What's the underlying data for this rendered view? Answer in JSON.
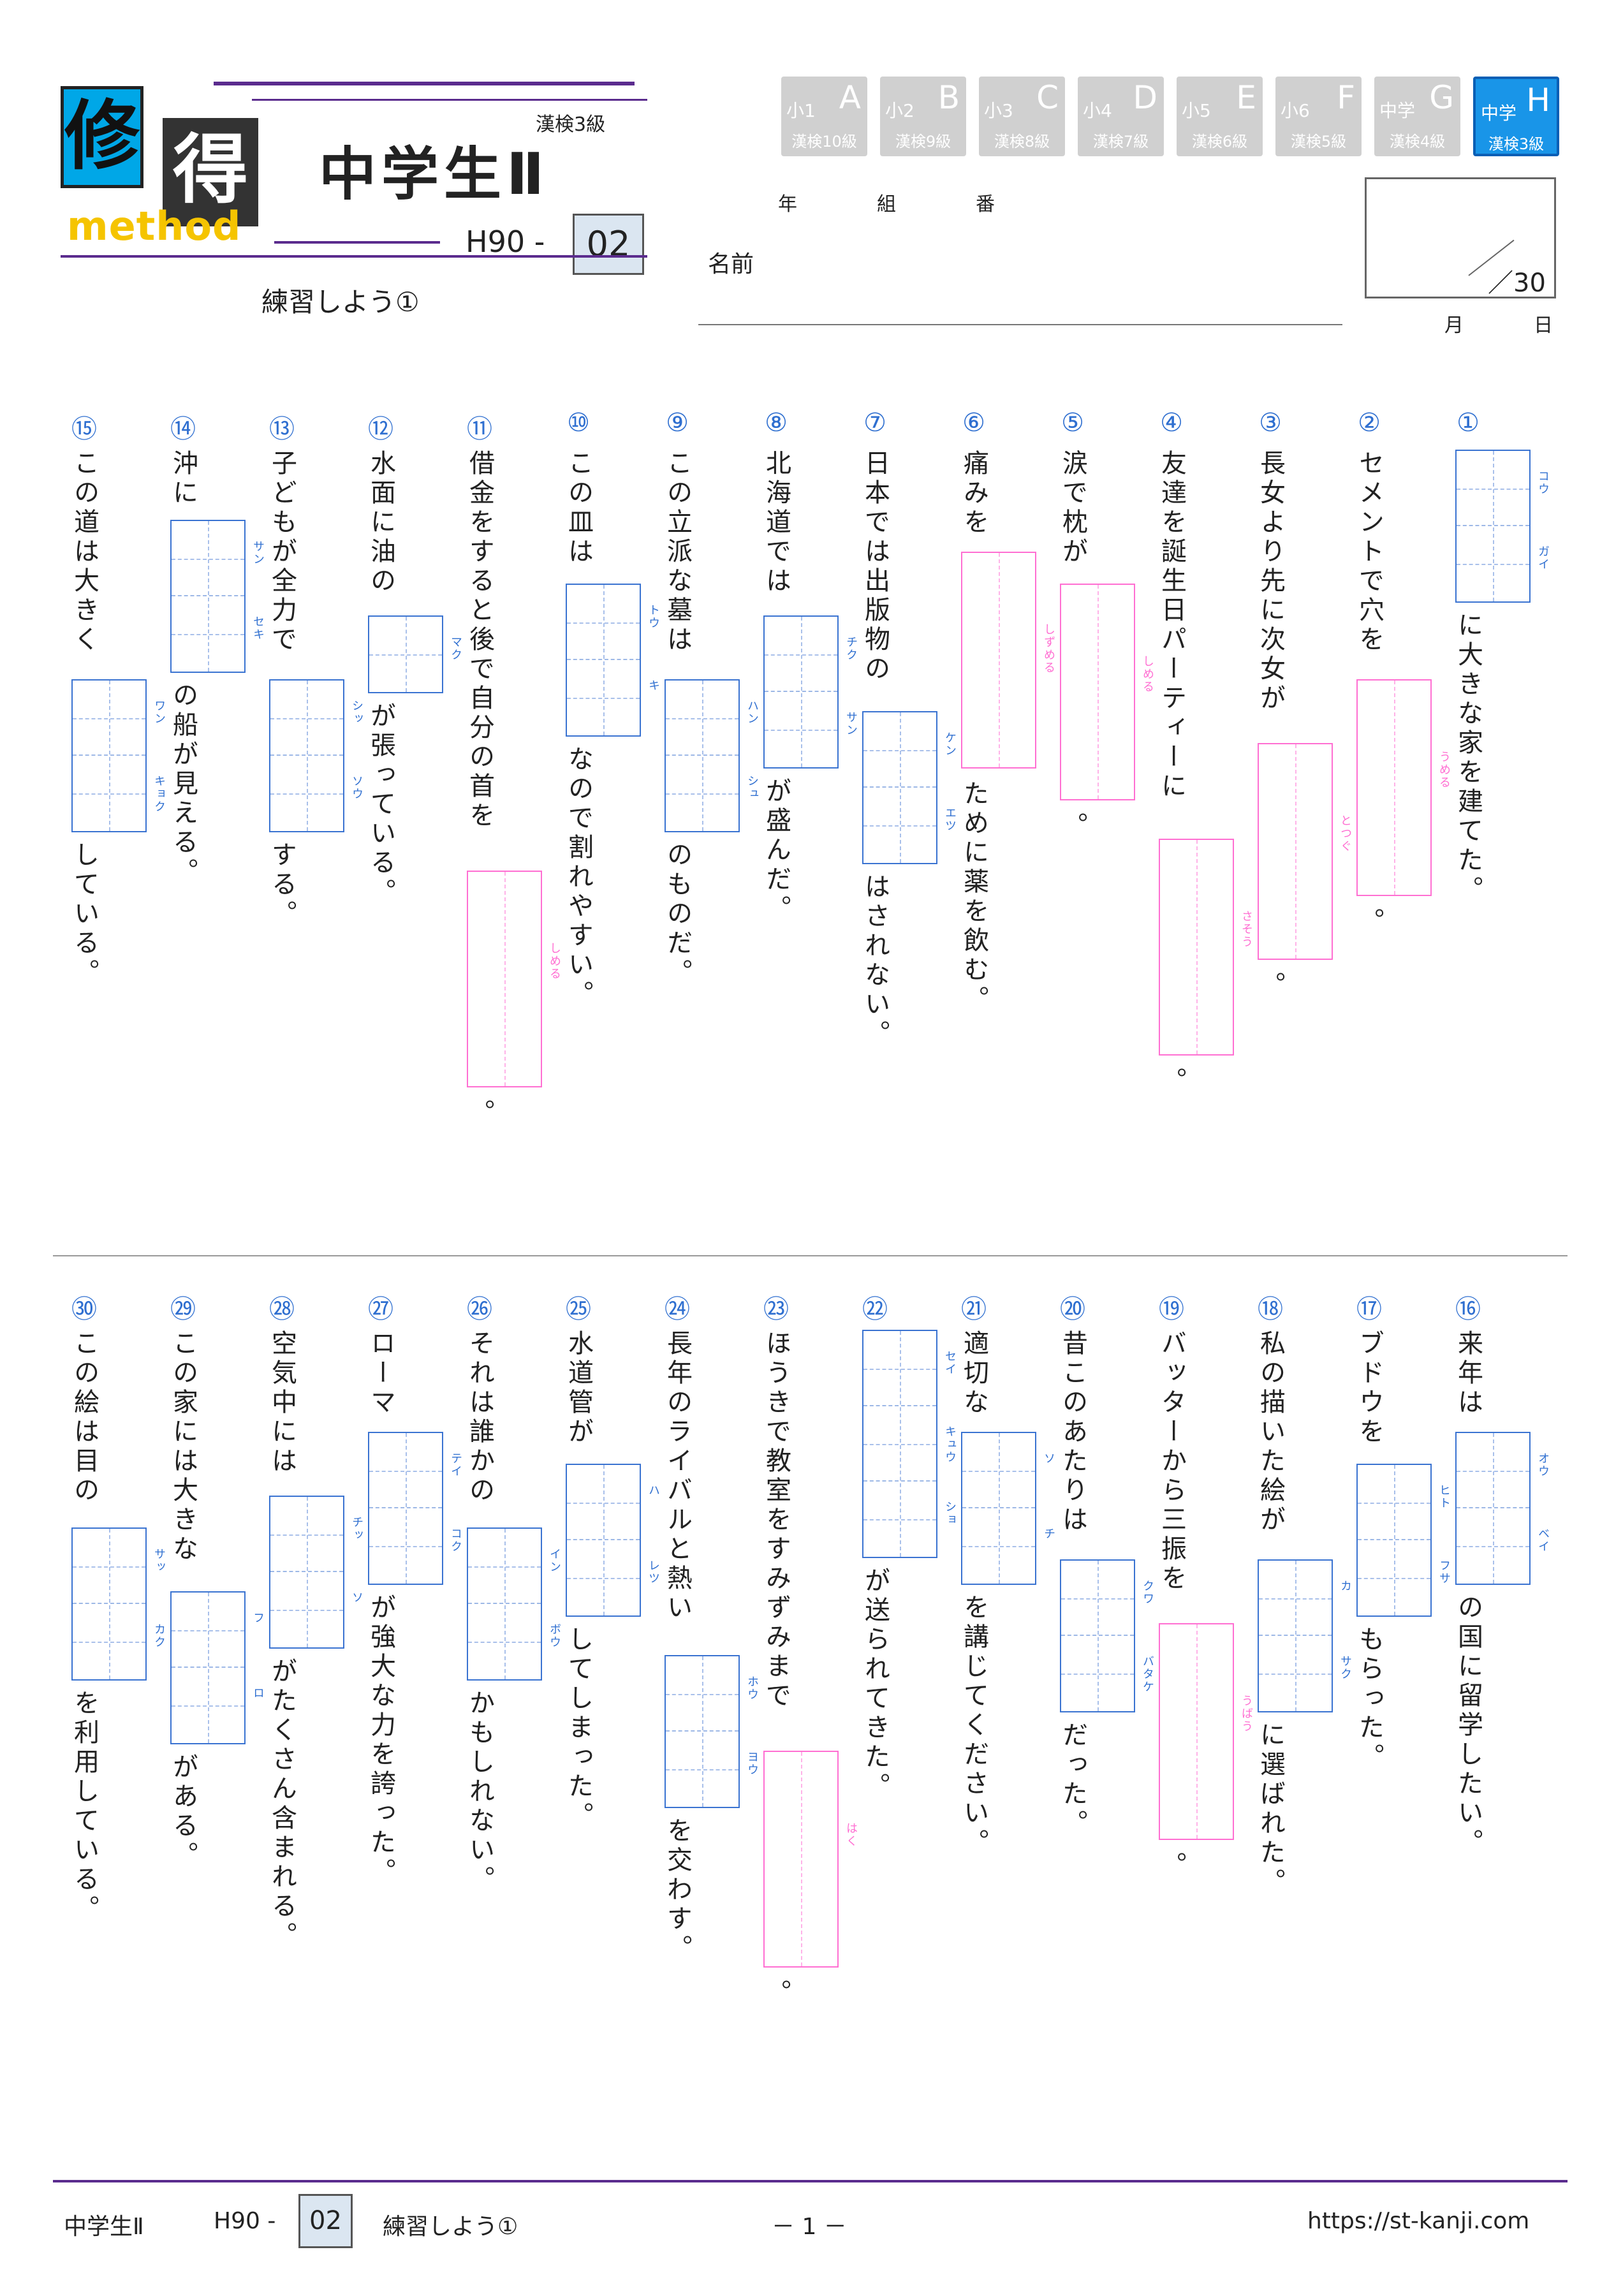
{
  "header": {
    "logo_chars": [
      "修",
      "得"
    ],
    "logo_sub": "method",
    "level_label": "漢検3級",
    "title": "中学生Ⅱ",
    "code_prefix": "H90 -",
    "code_num": "02",
    "subtitle": "練習しよう①",
    "grades": [
      {
        "g": "小1",
        "L": "A",
        "k": "漢検10級",
        "active": false
      },
      {
        "g": "小2",
        "L": "B",
        "k": "漢検9級",
        "active": false
      },
      {
        "g": "小3",
        "L": "C",
        "k": "漢検8級",
        "active": false
      },
      {
        "g": "小4",
        "L": "D",
        "k": "漢検7級",
        "active": false
      },
      {
        "g": "小5",
        "L": "E",
        "k": "漢検6級",
        "active": false
      },
      {
        "g": "小6",
        "L": "F",
        "k": "漢検5級",
        "active": false
      },
      {
        "g": "中学",
        "L": "G",
        "k": "漢検4級",
        "active": false
      },
      {
        "g": "中学",
        "L": "H",
        "k": "漢検3級",
        "active": true
      }
    ],
    "labels": {
      "year": "年",
      "class": "組",
      "number": "番",
      "name": "名前",
      "month": "月",
      "day": "日",
      "score": "／30"
    }
  },
  "items": [
    {
      "n": "①",
      "parts": [
        {
          "box": [
            "コウ",
            "ガイ"
          ],
          "c": "b"
        },
        {
          "t": "に大きな家を建てた。"
        }
      ]
    },
    {
      "n": "②",
      "parts": [
        {
          "t": "セメントで穴を"
        },
        {
          "box": [
            "うめる"
          ],
          "c": "p"
        },
        {
          "t": "。"
        }
      ]
    },
    {
      "n": "③",
      "parts": [
        {
          "t": "長女より先に次女が"
        },
        {
          "box": [
            "とつぐ"
          ],
          "c": "p"
        },
        {
          "t": "。"
        }
      ]
    },
    {
      "n": "④",
      "parts": [
        {
          "t": "友達を誕生日パーティーに"
        },
        {
          "box": [
            "さそう"
          ],
          "c": "p"
        },
        {
          "t": "。"
        }
      ]
    },
    {
      "n": "⑤",
      "parts": [
        {
          "t": "涙で枕が"
        },
        {
          "box": [
            "しめる"
          ],
          "c": "p"
        },
        {
          "t": "。"
        }
      ]
    },
    {
      "n": "⑥",
      "parts": [
        {
          "t": "痛みを"
        },
        {
          "box": [
            "しずめる"
          ],
          "c": "p"
        },
        {
          "t": "ために薬を飲む。"
        }
      ]
    },
    {
      "n": "⑦",
      "parts": [
        {
          "t": "日本では出版物の"
        },
        {
          "box": [
            "ケン",
            "エツ"
          ],
          "c": "b"
        },
        {
          "t": "はされない。"
        }
      ]
    },
    {
      "n": "⑧",
      "parts": [
        {
          "t": "北海道では"
        },
        {
          "box": [
            "チク",
            "サン"
          ],
          "c": "b"
        },
        {
          "t": "が盛んだ。"
        }
      ]
    },
    {
      "n": "⑨",
      "parts": [
        {
          "t": "この立派な墓は"
        },
        {
          "box": [
            "ハン",
            "シュ"
          ],
          "c": "b"
        },
        {
          "t": "のものだ。"
        }
      ]
    },
    {
      "n": "⑩",
      "parts": [
        {
          "t": "この皿は"
        },
        {
          "box": [
            "トウ",
            "キ"
          ],
          "c": "b"
        },
        {
          "t": "なので割れやすい。"
        }
      ]
    },
    {
      "n": "⑪",
      "parts": [
        {
          "t": "借金をすると後で自分の首を"
        },
        {
          "box": [
            "しめる"
          ],
          "c": "p"
        },
        {
          "t": "。"
        }
      ]
    },
    {
      "n": "⑫",
      "parts": [
        {
          "t": "水面に油の"
        },
        {
          "box": [
            "マク"
          ],
          "c": "b"
        },
        {
          "t": "が張っている。"
        }
      ]
    },
    {
      "n": "⑬",
      "parts": [
        {
          "t": "子どもが全力で"
        },
        {
          "box": [
            "シッ",
            "ソウ"
          ],
          "c": "b"
        },
        {
          "t": "する。"
        }
      ]
    },
    {
      "n": "⑭",
      "parts": [
        {
          "t": "沖に"
        },
        {
          "box": [
            "サン",
            "セキ"
          ],
          "c": "b"
        },
        {
          "t": "の船が見える。"
        }
      ]
    },
    {
      "n": "⑮",
      "parts": [
        {
          "t": "この道は大きく"
        },
        {
          "box": [
            "ワン",
            "キョク"
          ],
          "c": "b"
        },
        {
          "t": "している。"
        }
      ]
    },
    {
      "n": "⑯",
      "parts": [
        {
          "t": "来年は"
        },
        {
          "box": [
            "オウ",
            "ベイ"
          ],
          "c": "b"
        },
        {
          "t": "の国に留学したい。"
        }
      ]
    },
    {
      "n": "⑰",
      "parts": [
        {
          "t": "ブドウを"
        },
        {
          "box": [
            "ヒト",
            "フサ"
          ],
          "c": "b"
        },
        {
          "t": "もらった。"
        }
      ]
    },
    {
      "n": "⑱",
      "parts": [
        {
          "t": "私の描いた絵が"
        },
        {
          "box": [
            "カ",
            "サク"
          ],
          "c": "b"
        },
        {
          "t": "に選ばれた。"
        }
      ]
    },
    {
      "n": "⑲",
      "parts": [
        {
          "t": "バッターから三振を"
        },
        {
          "box": [
            "うばう"
          ],
          "c": "p"
        },
        {
          "t": "。"
        }
      ]
    },
    {
      "n": "⑳",
      "parts": [
        {
          "t": "昔このあたりは"
        },
        {
          "box": [
            "クワ",
            "バタケ"
          ],
          "c": "b"
        },
        {
          "t": "だった。"
        }
      ]
    },
    {
      "n": "㉑",
      "parts": [
        {
          "t": "適切な"
        },
        {
          "box": [
            "ソ",
            "チ"
          ],
          "c": "b"
        },
        {
          "t": "を講じてください。"
        }
      ]
    },
    {
      "n": "㉒",
      "parts": [
        {
          "box": [
            "セイ",
            "キュウ",
            "ショ"
          ],
          "c": "b"
        },
        {
          "t": "が送られてきた。"
        }
      ]
    },
    {
      "n": "㉓",
      "parts": [
        {
          "t": "ほうきで教室をすみずみまで"
        },
        {
          "box": [
            "はく"
          ],
          "c": "p"
        },
        {
          "t": "。"
        }
      ]
    },
    {
      "n": "㉔",
      "parts": [
        {
          "t": "長年のライバルと熱い"
        },
        {
          "box": [
            "ホウ",
            "ヨウ"
          ],
          "c": "b"
        },
        {
          "t": "を交わす。"
        }
      ]
    },
    {
      "n": "㉕",
      "parts": [
        {
          "t": "水道管が"
        },
        {
          "box": [
            "ハ",
            "レツ"
          ],
          "c": "b"
        },
        {
          "t": "してしまった。"
        }
      ]
    },
    {
      "n": "㉖",
      "parts": [
        {
          "t": "それは誰かの"
        },
        {
          "box": [
            "イン",
            "ボウ"
          ],
          "c": "b"
        },
        {
          "t": "かもしれない。"
        }
      ]
    },
    {
      "n": "㉗",
      "parts": [
        {
          "t": "ローマ"
        },
        {
          "box": [
            "テイ",
            "コク"
          ],
          "c": "b"
        },
        {
          "t": "が強大な力を誇った。"
        }
      ]
    },
    {
      "n": "㉘",
      "parts": [
        {
          "t": "空気中には"
        },
        {
          "box": [
            "チッ",
            "ソ"
          ],
          "c": "b"
        },
        {
          "t": "がたくさん含まれる。"
        }
      ]
    },
    {
      "n": "㉙",
      "parts": [
        {
          "t": "この家には大きな"
        },
        {
          "box": [
            "フ",
            "ロ"
          ],
          "c": "b"
        },
        {
          "t": "がある。"
        }
      ]
    },
    {
      "n": "㉚",
      "parts": [
        {
          "t": "この絵は目の"
        },
        {
          "box": [
            "サッ",
            "カク"
          ],
          "c": "b"
        },
        {
          "t": "を利用している。"
        }
      ]
    }
  ],
  "footer": {
    "title": "中学生Ⅱ",
    "code_prefix": "H90 -",
    "code_num": "02",
    "subtitle": "練習しよう①",
    "page": "－ 1 －",
    "url": "https://st-kanji.com"
  }
}
